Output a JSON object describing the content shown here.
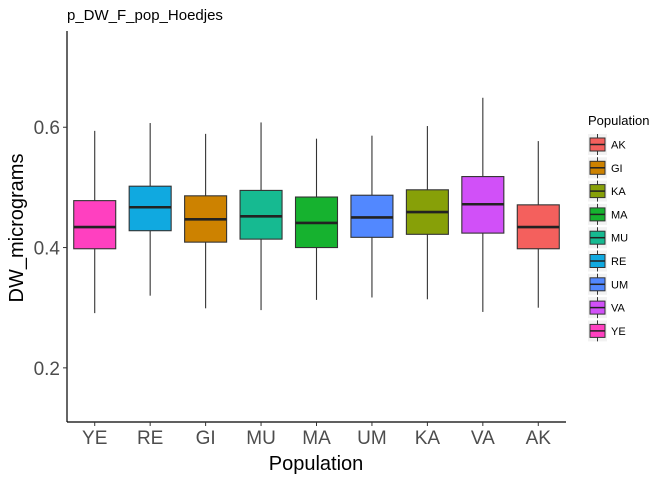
{
  "chart_data": {
    "type": "box",
    "title": "p_DW_F_pop_Hoedjes",
    "xlabel": "Population",
    "ylabel": "DW_micrograms",
    "ylim": [
      0.11,
      0.76
    ],
    "yticks": [
      0.2,
      0.4,
      0.6
    ],
    "ytick_labels": [
      "0.2",
      "0.4",
      "0.6"
    ],
    "grid": false,
    "legend_position": "right",
    "legend_title": "Population",
    "categories": [
      "YE",
      "RE",
      "GI",
      "MU",
      "MA",
      "UM",
      "KA",
      "VA",
      "AK"
    ],
    "boxes": [
      {
        "name": "YE",
        "min": 0.291,
        "q1": 0.398,
        "median": 0.434,
        "q3": 0.478,
        "max": 0.594,
        "color": "#FF40C0"
      },
      {
        "name": "RE",
        "min": 0.32,
        "q1": 0.428,
        "median": 0.467,
        "q3": 0.502,
        "max": 0.607,
        "color": "#10A9E0"
      },
      {
        "name": "GI",
        "min": 0.299,
        "q1": 0.409,
        "median": 0.447,
        "q3": 0.486,
        "max": 0.589,
        "color": "#CD8200"
      },
      {
        "name": "MU",
        "min": 0.296,
        "q1": 0.414,
        "median": 0.452,
        "q3": 0.495,
        "max": 0.608,
        "color": "#16BA91"
      },
      {
        "name": "MA",
        "min": 0.313,
        "q1": 0.4,
        "median": 0.441,
        "q3": 0.484,
        "max": 0.581,
        "color": "#16B22F"
      },
      {
        "name": "UM",
        "min": 0.317,
        "q1": 0.417,
        "median": 0.45,
        "q3": 0.487,
        "max": 0.586,
        "color": "#5288FF"
      },
      {
        "name": "KA",
        "min": 0.314,
        "q1": 0.422,
        "median": 0.459,
        "q3": 0.496,
        "max": 0.602,
        "color": "#87A008"
      },
      {
        "name": "VA",
        "min": 0.293,
        "q1": 0.424,
        "median": 0.472,
        "q3": 0.518,
        "max": 0.649,
        "color": "#D150F8"
      },
      {
        "name": "AK",
        "min": 0.3,
        "q1": 0.398,
        "median": 0.434,
        "q3": 0.471,
        "max": 0.577,
        "color": "#F4605D"
      }
    ],
    "legend": [
      "AK",
      "GI",
      "KA",
      "MA",
      "MU",
      "RE",
      "UM",
      "VA",
      "YE"
    ]
  }
}
